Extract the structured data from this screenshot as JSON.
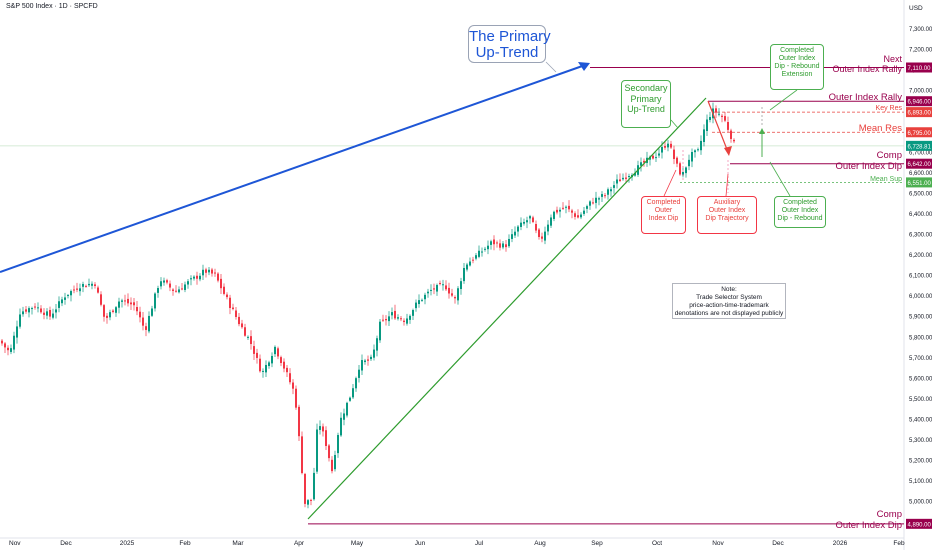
{
  "header": {
    "symbol_line": "S&P 500 Index · 1D · SPCFD"
  },
  "colors": {
    "up": "#089981",
    "down": "#f23645",
    "primary": "#1e56d6",
    "secondary": "#2e9c2e",
    "magenta": "#99004d",
    "red_line": "#e8413d",
    "green_line": "#4caf50"
  },
  "chart_data": {
    "type": "candlestick",
    "y_axis": {
      "currency": "USD",
      "ylim": [
        4860,
        7380
      ],
      "ticks": [
        4900,
        5000,
        5100,
        5200,
        5300,
        5400,
        5500,
        5600,
        5700,
        5800,
        5900,
        6000,
        6100,
        6200,
        6300,
        6400,
        6500,
        6600,
        6700,
        6800,
        6900,
        7000,
        7100,
        7200,
        7300
      ],
      "tick_labels": [
        "4,900.00",
        "5,000.00",
        "5,100.00",
        "5,200.00",
        "5,300.00",
        "5,400.00",
        "5,500.00",
        "5,600.00",
        "5,700.00",
        "5,800.00",
        "5,900.00",
        "6,000.00",
        "6,100.00",
        "6,200.00",
        "6,300.00",
        "6,400.00",
        "6,500.00",
        "6,600.00",
        "6,700.00",
        "6,800.00",
        "6,900.00",
        "7,000.00",
        "7,100.00",
        "7,200.00",
        "7,300.00"
      ]
    },
    "x_axis": {
      "labels": [
        "Nov",
        "Dec",
        "2025",
        "Feb",
        "Mar",
        "Apr",
        "May",
        "Jun",
        "Jul",
        "Aug",
        "Sep",
        "Oct",
        "Nov",
        "Dec",
        "2026",
        "Feb"
      ]
    },
    "price_tags": [
      {
        "value": 7110.0,
        "text": "7,110.00",
        "color": "#99004d"
      },
      {
        "value": 6946.0,
        "text": "6,946.00",
        "color": "#99004d"
      },
      {
        "value": 6893.0,
        "text": "6,893.00",
        "color": "#e8413d"
      },
      {
        "value": 6795.0,
        "text": "6,795.00",
        "color": "#e8413d"
      },
      {
        "value": 6728.81,
        "text": "6,728.81",
        "color": "#089981"
      },
      {
        "value": 6642.0,
        "text": "6,642.00",
        "color": "#99004d"
      },
      {
        "value": 6551.0,
        "text": "6,551.00",
        "color": "#4caf50"
      },
      {
        "value": 4890.0,
        "text": "4,890.00",
        "color": "#99004d"
      }
    ],
    "levels": [
      {
        "value": 7110.0,
        "labels": [
          "Next",
          "Outer Index Rally"
        ],
        "color": "#99004d"
      },
      {
        "value": 6946.0,
        "labels": [
          "Outer Index Rally"
        ],
        "color": "#99004d"
      },
      {
        "value": 6893.0,
        "labels": [
          "Key Res"
        ],
        "color": "#e8413d"
      },
      {
        "value": 6795.0,
        "labels": [
          "Mean Res"
        ],
        "color": "#e8413d"
      },
      {
        "value": 6642.0,
        "labels": [
          "Comp",
          "Outer Index Dip"
        ],
        "color": "#99004d"
      },
      {
        "value": 6551.0,
        "labels": [
          "Mean Sup"
        ],
        "color": "#4caf50"
      },
      {
        "value": 4890.0,
        "labels": [
          "Comp",
          "Outer Index Dip"
        ],
        "color": "#99004d"
      }
    ],
    "trendlines": [
      {
        "name": "primary",
        "from": [
          "Oct 2024",
          6060
        ],
        "to": [
          "Sep 2025",
          7130
        ]
      },
      {
        "name": "secondary",
        "from": [
          "Apr 2025",
          4890
        ],
        "to": [
          "Oct 2025",
          6960
        ]
      }
    ],
    "candles_description_free": true
  },
  "annotations": {
    "primary": [
      "The Primary",
      "Up-Trend"
    ],
    "secondary": [
      "Secondary",
      "Primary",
      "Up-Trend"
    ],
    "completed_dip": [
      "Completed",
      "Outer",
      "Index Dip"
    ],
    "aux": [
      "Auxiliary",
      "Outer Index",
      "Dip Trajectory"
    ],
    "rebound_ext": [
      "Completed",
      "Outer Index",
      "Dip - Rebound",
      "Extension"
    ],
    "rebound": [
      "Completed",
      "Outer Index",
      "Dip - Rebound"
    ],
    "note": [
      "Note:",
      "Trade Selector System",
      "price-action-time-trademark",
      "denotations are not displayed publicly"
    ]
  }
}
